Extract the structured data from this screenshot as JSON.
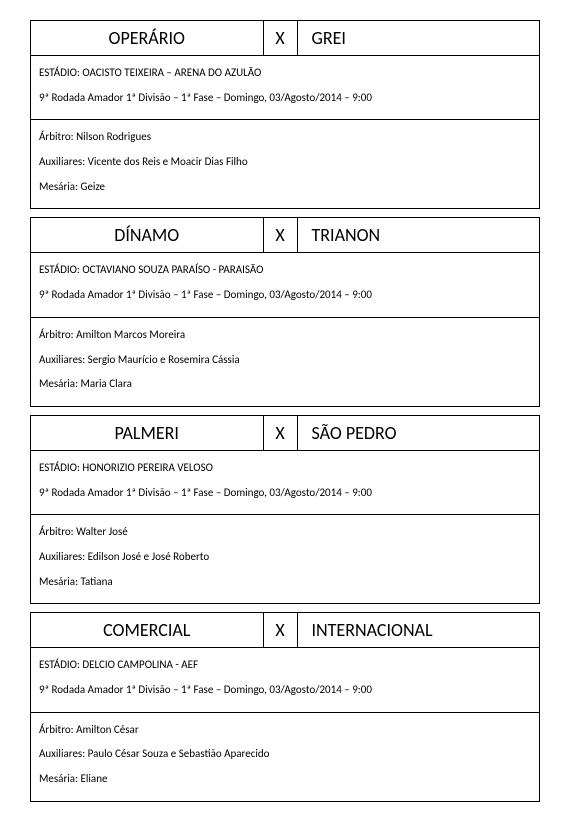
{
  "common": {
    "vs": "X",
    "round_info": "9ª Rodada Amador 1ª Divisão – 1ª Fase – Domingo, 03/Agosto/2014 – 9:00"
  },
  "matches": [
    {
      "home": "OPERÁRIO",
      "away": "GREI",
      "stadium": "ESTÁDIO: OACISTO TEIXEIRA – ARENA DO AZULÃO",
      "referee": "Árbitro: Nilson Rodrigues",
      "assistants": "Auxiliares: Vicente dos Reis e Moacir Dias Filho",
      "scorer": "Mesária: Geize"
    },
    {
      "home": "DÍNAMO",
      "away": "TRIANON",
      "stadium": "ESTÁDIO: OCTAVIANO SOUZA PARAÍSO - PARAISÃO",
      "referee": "Árbitro: Amilton Marcos Moreira",
      "assistants": "Auxiliares: Sergio Maurício e Rosemira Cássia",
      "scorer": "Mesária: Maria Clara"
    },
    {
      "home": "PALMERI",
      "away": "SÃO PEDRO",
      "stadium": "ESTÁDIO: HONORIZIO PEREIRA VELOSO",
      "referee": "Árbitro: Walter José",
      "assistants": "Auxiliares: Edilson José e José Roberto",
      "scorer": "Mesária: Tatiana"
    },
    {
      "home": "COMERCIAL",
      "away": "INTERNACIONAL",
      "stadium": "ESTÁDIO: DELCIO CAMPOLINA - AEF",
      "referee": "Árbitro: Amilton César",
      "assistants": "Auxiliares: Paulo César Souza e Sebastião Aparecido",
      "scorer": "Mesária: Eliane"
    }
  ]
}
